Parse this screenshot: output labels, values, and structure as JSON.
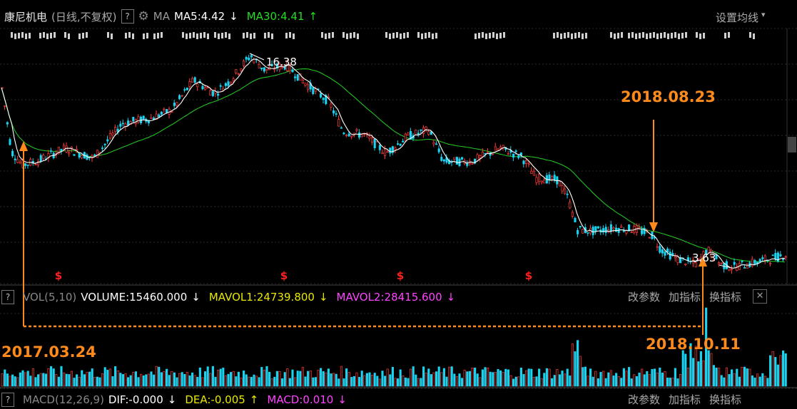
{
  "header": {
    "stock_name": "康尼机电",
    "mode": "(日线,不复权)",
    "help_mark": "?",
    "ma_label": "MA",
    "ma5": "MA5:4.42",
    "ma5_arrow": "↓",
    "ma30": "MA30:4.41",
    "ma30_arrow": "↑",
    "settings": "设置均线",
    "settings_caret": "▾"
  },
  "volume_header": {
    "help_mark": "?",
    "label": "VOL(5,10)",
    "volume": "VOLUME:15460.000",
    "volume_arrow": "↓",
    "mavol1": "MAVOL1:24739.800",
    "mavol1_arrow": "↓",
    "mavol2": "MAVOL2:28415.600",
    "mavol2_arrow": "↓",
    "btn_params": "改参数",
    "btn_add": "加指标",
    "btn_switch": "换指标",
    "close": "✕"
  },
  "macd_header": {
    "help_mark": "?",
    "label": "MACD(12,26,9)",
    "dif": "DIF:-0.000",
    "dif_arrow": "↓",
    "dea": "DEA:-0.005",
    "dea_arrow": "↑",
    "macd": "MACD:0.010",
    "macd_arrow": "↓",
    "btn_params": "改参数",
    "btn_add": "加指标",
    "btn_switch": "换指标"
  },
  "colors": {
    "up": "#ff3b3b",
    "down": "#19d4f0",
    "ma5": "#ffffff",
    "ma30": "#22c022",
    "annotation": "#ff8a1c",
    "mavol1": "#e0e000",
    "mavol2": "#ff44ff"
  },
  "chart_data": {
    "type": "candlestick",
    "title": "康尼机电",
    "max_label": "16.38",
    "min_label": "3.63",
    "annotations": [
      "2017.03.24",
      "2018.08.23",
      "2018.10.11"
    ],
    "event_markers": [
      "$",
      "$",
      "$",
      "$"
    ],
    "price_path": [
      {
        "x": 0,
        "y": 15.0
      },
      {
        "x": 15,
        "y": 10.6
      },
      {
        "x": 30,
        "y": 9.8
      },
      {
        "x": 50,
        "y": 10.0
      },
      {
        "x": 90,
        "y": 10.8
      },
      {
        "x": 130,
        "y": 10.2
      },
      {
        "x": 170,
        "y": 12.3
      },
      {
        "x": 210,
        "y": 12.6
      },
      {
        "x": 240,
        "y": 13.1
      },
      {
        "x": 270,
        "y": 14.9
      },
      {
        "x": 300,
        "y": 14.1
      },
      {
        "x": 320,
        "y": 14.8
      },
      {
        "x": 350,
        "y": 16.38
      },
      {
        "x": 370,
        "y": 15.5
      },
      {
        "x": 400,
        "y": 15.8
      },
      {
        "x": 430,
        "y": 14.6
      },
      {
        "x": 460,
        "y": 13.6
      },
      {
        "x": 480,
        "y": 11.8
      },
      {
        "x": 510,
        "y": 11.6
      },
      {
        "x": 540,
        "y": 10.5
      },
      {
        "x": 570,
        "y": 11.5
      },
      {
        "x": 600,
        "y": 11.9
      },
      {
        "x": 620,
        "y": 10.0
      },
      {
        "x": 660,
        "y": 10.0
      },
      {
        "x": 700,
        "y": 10.8
      },
      {
        "x": 730,
        "y": 10.3
      },
      {
        "x": 750,
        "y": 9.0
      },
      {
        "x": 780,
        "y": 8.9
      },
      {
        "x": 795,
        "y": 7.8
      },
      {
        "x": 808,
        "y": 5.9
      },
      {
        "x": 830,
        "y": 5.8
      },
      {
        "x": 860,
        "y": 6.0
      },
      {
        "x": 890,
        "y": 5.9
      },
      {
        "x": 912,
        "y": 5.6
      },
      {
        "x": 925,
        "y": 4.7
      },
      {
        "x": 950,
        "y": 4.1
      },
      {
        "x": 975,
        "y": 3.8
      },
      {
        "x": 990,
        "y": 4.7
      },
      {
        "x": 1010,
        "y": 3.8
      },
      {
        "x": 1025,
        "y": 3.63
      },
      {
        "x": 1055,
        "y": 3.9
      },
      {
        "x": 1085,
        "y": 4.2
      },
      {
        "x": 1100,
        "y": 4.4
      }
    ]
  }
}
